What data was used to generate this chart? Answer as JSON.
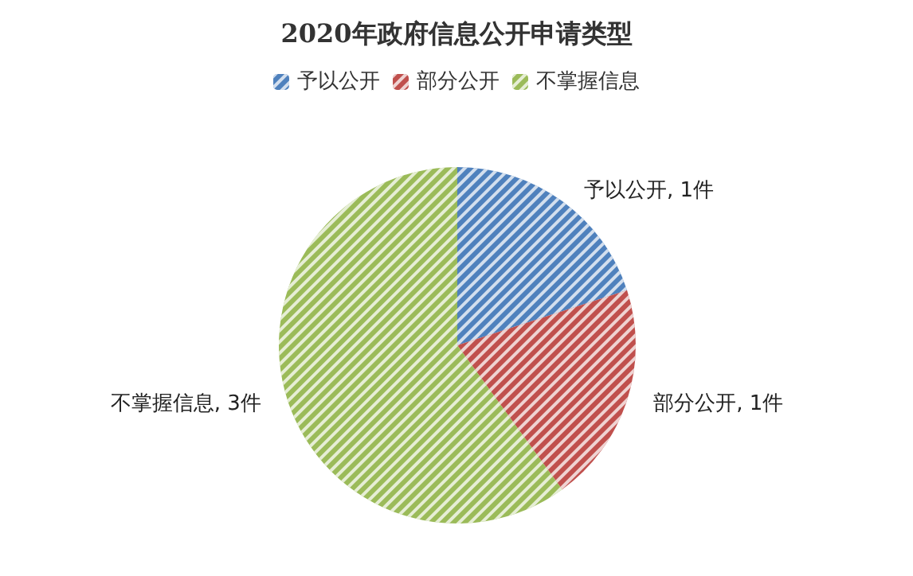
{
  "chart_data": {
    "type": "pie",
    "title": "2020年政府信息公开申请类型",
    "categories": [
      "予以公开",
      "部分公开",
      "不掌握信息"
    ],
    "values": [
      1,
      1,
      3
    ],
    "colors": [
      "#4f81bd",
      "#c0504d",
      "#9bbb59"
    ],
    "value_labels": [
      "予以公开, 1件",
      "部分公开, 1件",
      "不掌握信息, 3件"
    ],
    "legend": "top"
  }
}
